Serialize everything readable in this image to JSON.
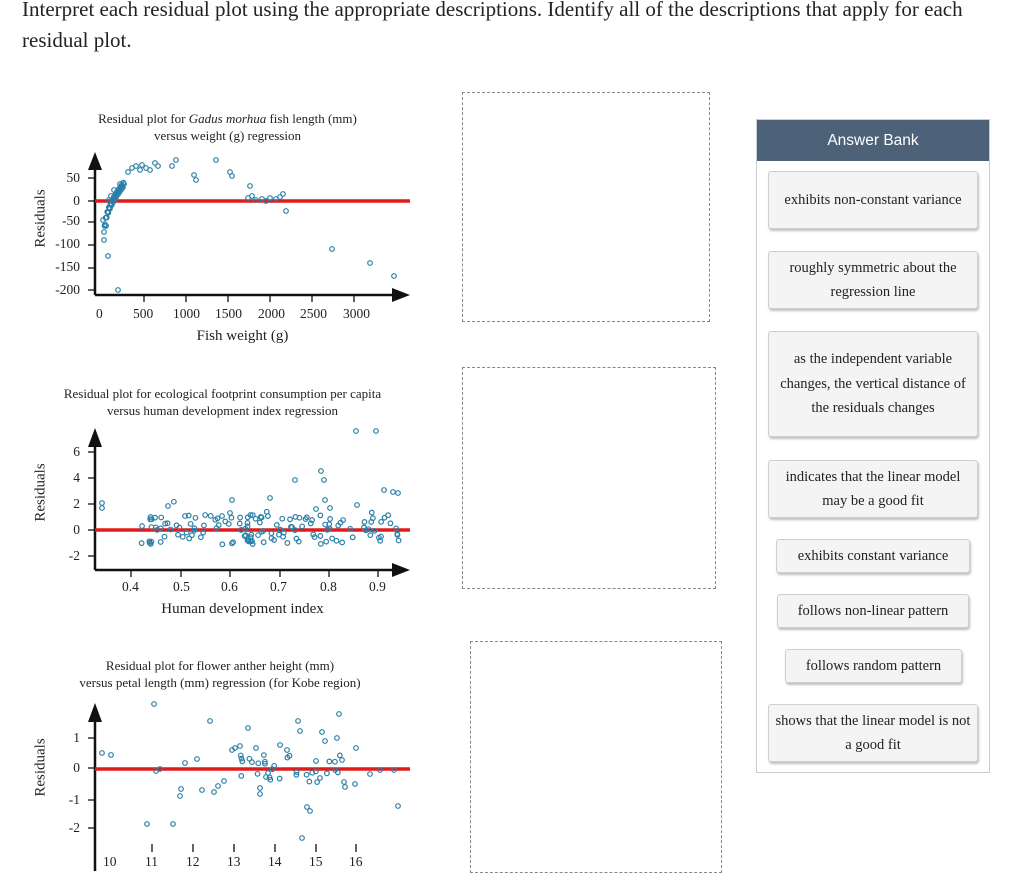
{
  "instructions": "Interpret each residual plot using the appropriate descriptions. Identify all of the descriptions that apply for each residual plot.",
  "plots": [
    {
      "title_line1_pre": "Residual plot for ",
      "title_line1_italic": "Gadus morhua",
      "title_line1_post": " fish length (mm)",
      "title_line2": "versus weight (g) regression",
      "ylabel": "Residuals",
      "xlabel": "Fish weight (g)",
      "xticks": [
        "0",
        "500",
        "1000",
        "1500",
        "2000",
        "2500",
        "3000"
      ],
      "yticks": [
        "50",
        "0",
        "-50",
        "-100",
        "-150",
        "-200"
      ]
    },
    {
      "title_line1": "Residual plot for ecological footprint consumption per capita",
      "title_line2": "versus human development index regression",
      "ylabel": "Residuals",
      "xlabel": "Human development index",
      "xticks": [
        "0.4",
        "0.5",
        "0.6",
        "0.7",
        "0.8",
        "0.9"
      ],
      "yticks": [
        "6",
        "4",
        "2",
        "0",
        "-2"
      ]
    },
    {
      "title_line1": "Residual plot for flower anther height (mm)",
      "title_line2": "versus petal length (mm) regression (for Kobe region)",
      "ylabel": "Residuals",
      "xlabel": "",
      "xticks": [
        "10",
        "11",
        "12",
        "13",
        "14",
        "15",
        "16"
      ],
      "yticks": [
        "1",
        "0",
        "-1",
        "-2"
      ]
    }
  ],
  "answer_bank": {
    "title": "Answer Bank",
    "items": [
      "exhibits non-constant variance",
      "roughly symmetric about the regression line",
      "as the independent variable changes, the vertical distance of the residuals changes",
      "indicates that the linear model may be a good fit",
      "exhibits constant variance",
      "follows non-linear pattern",
      "follows random pattern",
      "shows that the linear model is not a good fit"
    ]
  },
  "colors": {
    "point": "#2a7fa8",
    "zero_line": "#e01b1b",
    "bank_header": "#4d6178"
  }
}
